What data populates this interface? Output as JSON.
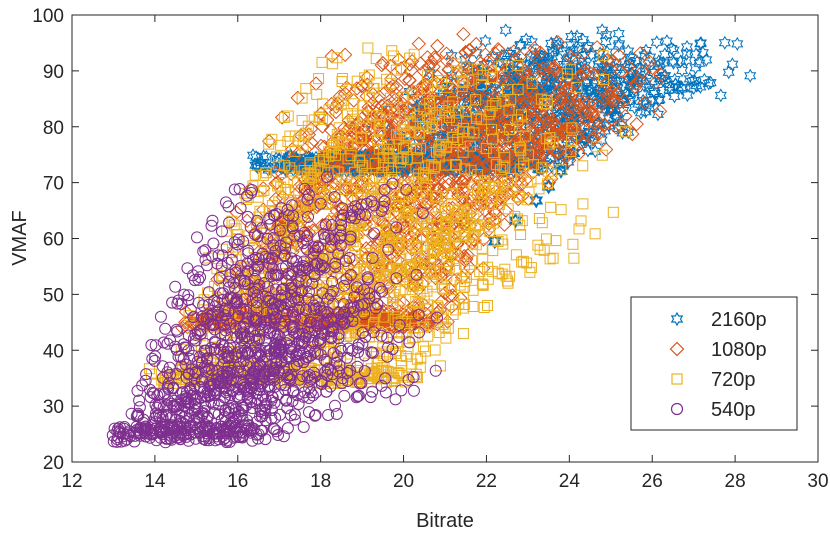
{
  "chart_data": {
    "type": "scatter",
    "title": "",
    "xlabel": "Bitrate",
    "ylabel": "VMAF",
    "xlim": [
      12,
      30
    ],
    "ylim": [
      20,
      100
    ],
    "xticks": [
      12,
      14,
      16,
      18,
      20,
      22,
      24,
      26,
      28,
      30
    ],
    "yticks": [
      20,
      30,
      40,
      50,
      60,
      70,
      80,
      90,
      100
    ],
    "grid": false,
    "legend_position": "bottom-right",
    "series": [
      {
        "name": "2160p",
        "marker": "hexagram",
        "color": "#0072BD",
        "cluster": {
          "x_range": [
            16.5,
            28.8
          ],
          "y_range": [
            72,
            100
          ],
          "approx_count": 1400
        },
        "highlighted_trace": [
          {
            "x": 22.2,
            "y": 59.5
          },
          {
            "x": 22.7,
            "y": 63.2
          },
          {
            "x": 23.2,
            "y": 66.8
          },
          {
            "x": 23.5,
            "y": 69.3
          },
          {
            "x": 23.8,
            "y": 72.1
          },
          {
            "x": 24.1,
            "y": 75.3
          },
          {
            "x": 24.4,
            "y": 77.8
          },
          {
            "x": 24.7,
            "y": 80.6
          },
          {
            "x": 25.0,
            "y": 83.0
          },
          {
            "x": 25.3,
            "y": 85.0
          }
        ]
      },
      {
        "name": "1080p",
        "marker": "diamond",
        "color": "#D95319",
        "cluster": {
          "x_range": [
            14.8,
            26.6
          ],
          "y_range": [
            44,
            100
          ],
          "approx_count": 1600
        }
      },
      {
        "name": "720p",
        "marker": "square",
        "color": "#EDB120",
        "cluster": {
          "x_range": [
            13.8,
            25.0
          ],
          "y_range": [
            34,
            99
          ],
          "approx_count": 1400
        }
      },
      {
        "name": "540p",
        "marker": "circle",
        "color": "#7E2F8E",
        "cluster": {
          "x_range": [
            13.0,
            21.0
          ],
          "y_range": [
            24,
            72
          ],
          "approx_count": 1200
        }
      }
    ]
  }
}
